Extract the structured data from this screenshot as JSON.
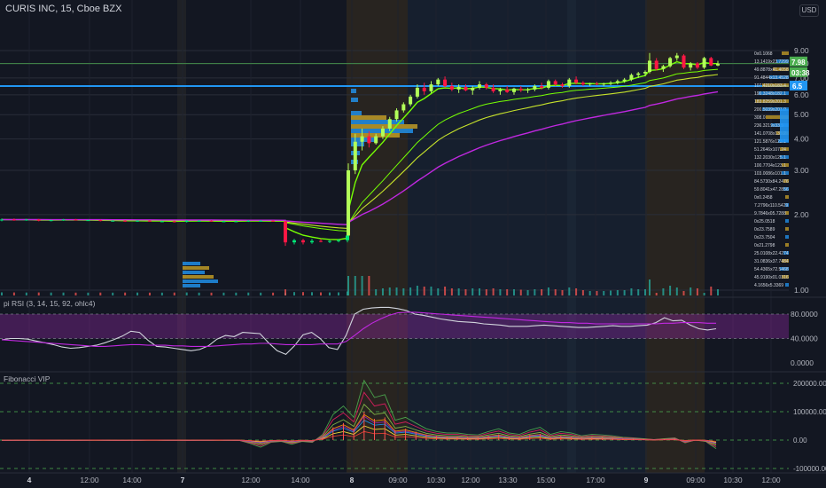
{
  "header": {
    "title": "CURIS INC, 15, Cboe BZX",
    "currency_button": "USD"
  },
  "colors": {
    "background": "#131722",
    "up": "#00e676",
    "up_light": "#b2ff59",
    "down": "#ff1744",
    "volume_profile_blue": "#2196f3",
    "volume_profile_gold": "#c9a227",
    "ema_fast": "#76ff03",
    "ema_mid": "#c6e22b",
    "ema_slow": "#c028e0",
    "hline": "#2196f3",
    "rsi_band": "#9c27b0"
  },
  "chart_data": [
    {
      "type": "candlestick",
      "title": "CURIS INC, 15, Cboe BZX",
      "ylim": [
        1.0,
        9.0
      ],
      "y_scale": "log",
      "y_ticks": [
        "9.00",
        "8.00",
        "7.00",
        "6.00",
        "5.00",
        "4.00",
        "3.00",
        "2.00",
        "1.00"
      ],
      "x_ticks": [
        "4",
        "12:00",
        "14:00",
        "7",
        "12:00",
        "14:00",
        "8",
        "09:00",
        "10:30",
        "12:00",
        "13:30",
        "15:00",
        "17:00",
        "9",
        "09:00",
        "10:30",
        "12:00"
      ],
      "last_price": "7.98",
      "countdown": "03:38",
      "horizontal_line": 6.5,
      "horizontal_line_label": "6.5",
      "candles": [
        [
          1.9,
          1.93,
          1.88,
          1.91
        ],
        [
          1.91,
          1.93,
          1.89,
          1.9
        ],
        [
          1.9,
          1.92,
          1.89,
          1.91
        ],
        [
          1.91,
          1.92,
          1.88,
          1.89
        ],
        [
          1.89,
          1.91,
          1.88,
          1.9
        ],
        [
          1.9,
          1.92,
          1.89,
          1.91
        ],
        [
          1.91,
          1.92,
          1.9,
          1.9
        ],
        [
          1.9,
          1.91,
          1.89,
          1.9
        ],
        [
          1.9,
          1.91,
          1.88,
          1.89
        ],
        [
          1.89,
          1.9,
          1.88,
          1.89
        ],
        [
          1.89,
          1.9,
          1.87,
          1.88
        ],
        [
          1.88,
          1.9,
          1.87,
          1.89
        ],
        [
          1.89,
          1.9,
          1.88,
          1.88
        ],
        [
          1.88,
          1.89,
          1.87,
          1.88
        ],
        [
          1.88,
          1.89,
          1.86,
          1.87
        ],
        [
          1.87,
          1.9,
          1.86,
          1.89
        ],
        [
          1.89,
          1.9,
          1.88,
          1.89
        ],
        [
          1.89,
          1.9,
          1.88,
          1.88
        ],
        [
          1.88,
          1.89,
          1.87,
          1.88
        ],
        [
          1.88,
          1.89,
          1.87,
          1.88
        ],
        [
          1.88,
          1.9,
          1.87,
          1.89
        ],
        [
          1.89,
          1.9,
          1.88,
          1.89
        ],
        [
          1.89,
          1.9,
          1.88,
          1.88
        ],
        [
          1.88,
          1.89,
          1.87,
          1.88
        ],
        [
          1.88,
          1.89,
          1.5,
          1.55
        ],
        [
          1.55,
          1.6,
          1.52,
          1.58
        ],
        [
          1.58,
          1.6,
          1.52,
          1.55
        ],
        [
          1.55,
          1.6,
          1.53,
          1.57
        ],
        [
          1.57,
          1.6,
          1.55,
          1.56
        ],
        [
          1.56,
          1.58,
          1.54,
          1.57
        ],
        [
          1.57,
          1.6,
          1.55,
          1.58
        ],
        [
          1.58,
          1.7,
          1.55,
          1.65
        ],
        [
          1.65,
          3.2,
          1.65,
          3.0
        ],
        [
          3.0,
          4.2,
          2.9,
          3.9
        ],
        [
          3.9,
          4.4,
          3.6,
          4.1
        ],
        [
          4.1,
          4.3,
          3.7,
          3.85
        ],
        [
          3.85,
          4.2,
          3.8,
          4.1
        ],
        [
          4.1,
          4.5,
          4.0,
          4.4
        ],
        [
          4.4,
          4.9,
          4.3,
          4.8
        ],
        [
          4.8,
          5.3,
          4.7,
          5.2
        ],
        [
          5.2,
          5.6,
          5.1,
          5.5
        ],
        [
          5.5,
          6.0,
          5.4,
          5.9
        ],
        [
          5.9,
          6.6,
          5.8,
          6.4
        ],
        [
          6.4,
          6.7,
          6.0,
          6.2
        ],
        [
          6.2,
          6.8,
          6.1,
          6.6
        ],
        [
          6.6,
          7.0,
          6.5,
          6.9
        ],
        [
          6.9,
          7.1,
          6.4,
          6.5
        ],
        [
          6.5,
          6.7,
          6.2,
          6.3
        ],
        [
          6.3,
          6.6,
          6.1,
          6.45
        ],
        [
          6.45,
          6.6,
          6.2,
          6.25
        ],
        [
          6.25,
          6.5,
          6.0,
          6.4
        ],
        [
          6.4,
          6.8,
          6.3,
          6.6
        ],
        [
          6.6,
          6.7,
          6.3,
          6.4
        ],
        [
          6.4,
          6.6,
          6.1,
          6.2
        ],
        [
          6.2,
          6.4,
          6.0,
          6.3
        ],
        [
          6.3,
          6.5,
          6.1,
          6.15
        ],
        [
          6.15,
          6.4,
          6.0,
          6.35
        ],
        [
          6.35,
          6.5,
          6.15,
          6.25
        ],
        [
          6.25,
          6.4,
          6.1,
          6.3
        ],
        [
          6.3,
          6.6,
          6.2,
          6.5
        ],
        [
          6.5,
          6.7,
          6.3,
          6.4
        ],
        [
          6.4,
          6.9,
          6.3,
          6.8
        ],
        [
          6.8,
          6.9,
          6.5,
          6.6
        ],
        [
          6.6,
          6.7,
          6.4,
          6.5
        ],
        [
          6.5,
          7.0,
          6.4,
          6.9
        ],
        [
          6.9,
          7.1,
          6.6,
          6.7
        ],
        [
          6.7,
          6.8,
          6.5,
          6.6
        ],
        [
          6.6,
          6.7,
          6.5,
          6.65
        ],
        [
          6.65,
          6.75,
          6.55,
          6.6
        ],
        [
          6.6,
          6.7,
          6.5,
          6.65
        ],
        [
          6.65,
          6.8,
          6.55,
          6.7
        ],
        [
          6.7,
          6.9,
          6.6,
          6.8
        ],
        [
          6.8,
          7.0,
          6.7,
          6.9
        ],
        [
          6.9,
          7.3,
          6.8,
          7.2
        ],
        [
          7.2,
          7.4,
          7.0,
          7.3
        ],
        [
          7.3,
          7.5,
          7.1,
          7.4
        ],
        [
          7.4,
          8.8,
          7.3,
          8.2
        ],
        [
          8.2,
          8.4,
          7.5,
          7.6
        ],
        [
          7.6,
          7.9,
          7.4,
          7.8
        ],
        [
          7.8,
          8.5,
          7.7,
          8.4
        ],
        [
          8.4,
          8.8,
          8.2,
          8.6
        ],
        [
          8.6,
          8.7,
          7.6,
          7.7
        ],
        [
          7.7,
          8.1,
          7.5,
          8.0
        ],
        [
          8.0,
          8.1,
          7.6,
          7.7
        ],
        [
          7.7,
          8.5,
          7.6,
          8.4
        ],
        [
          8.4,
          8.5,
          7.8,
          7.85
        ],
        [
          7.85,
          8.2,
          7.8,
          7.98
        ]
      ],
      "moving_averages": {
        "ema_fast_end": 7.5,
        "ema_mid_end": 6.4,
        "ema_slow_end": 5.45
      },
      "volume_profile_levels": [
        "0x0.1068",
        "13.1419x23.7299",
        "49.8878x41.4058",
        "91.4844x13.4528",
        "107.4210x183.4",
        "190.3248x182.1",
        "183.8259x201.3",
        "200.5039x201.0",
        "308.0",
        "236.3219x33.5",
        "141.0708x135.2",
        "121.5876x123.1",
        "51.2646x107.24",
        "132.2030x125.1",
        "100.7704x123.1",
        "103.0086x101.1",
        "84.5730x84.2476",
        "59.8041x47.2856",
        "0x0.2458",
        "7.2796x110.5429",
        "9.7846x05.7288",
        "0x25.0518",
        "0x23.7589",
        "0x23.7504",
        "0x21.2798",
        "25.0108x22.4274",
        "31.0836x37.7484",
        "54.4365x72.5468",
        "45.9190x01.0316",
        "4.1656x5.3369"
      ]
    },
    {
      "type": "line",
      "title": "pi RSI (3, 14, 15, 92, ohlc4)",
      "ylim": [
        0,
        100
      ],
      "y_ticks": [
        "80.0000",
        "40.0000",
        "0.0000"
      ],
      "band": [
        40,
        80
      ],
      "series": [
        {
          "values": [
            38,
            40,
            40,
            39,
            36,
            33,
            30,
            26,
            24,
            25,
            27,
            29,
            33,
            38,
            44,
            52,
            50,
            37,
            27,
            26,
            24,
            22,
            20,
            22,
            28,
            39,
            45,
            43,
            50,
            49,
            48,
            33,
            20,
            14,
            28,
            46,
            50,
            40,
            25,
            22,
            45,
            80,
            88,
            90,
            91,
            91,
            89,
            86,
            80,
            78,
            75,
            72,
            70,
            68,
            67,
            66,
            64,
            63,
            62,
            60,
            60,
            60,
            61,
            62,
            61,
            60,
            59,
            58,
            58,
            59,
            60,
            61,
            60,
            60,
            61,
            62,
            66,
            74,
            69,
            70,
            62,
            56,
            54,
            56
          ]
        },
        {
          "values": [
            38,
            37,
            36,
            35,
            34,
            33,
            32,
            31,
            30,
            29,
            28,
            27,
            27,
            28,
            29,
            30,
            30,
            29,
            29,
            29,
            28,
            28,
            27,
            27,
            27,
            28,
            29,
            30,
            31,
            31,
            32,
            32,
            31,
            30,
            30,
            30,
            30,
            31,
            31,
            31,
            35,
            45,
            56,
            65,
            72,
            78,
            82,
            83,
            83,
            82,
            81,
            80,
            79,
            78,
            77,
            76,
            75,
            74,
            73,
            72,
            71,
            70,
            69,
            68,
            67,
            66,
            66,
            65,
            65,
            64,
            64,
            64,
            64,
            64,
            64,
            64,
            64,
            65,
            65,
            66,
            66,
            66,
            65,
            65
          ]
        }
      ]
    },
    {
      "type": "line",
      "title": "Fibonacci VIP",
      "ylim": [
        -100000,
        200000
      ],
      "y_ticks": [
        "200000.00",
        "100000.00",
        "0.00",
        "-100000.00"
      ],
      "series": [
        {
          "values": [
            -2000,
            -2000,
            -1500,
            -1500,
            -1000,
            -1500,
            -2000,
            -2000,
            -1500,
            -1000,
            -1500,
            -2000,
            -2000,
            -1500,
            -1000,
            -1000,
            -1500,
            -1500,
            -2000,
            -1500,
            -1500,
            -1000,
            -1500,
            -2000,
            -12000,
            -25000,
            -8000,
            -5000,
            -15000,
            -5000,
            -8000,
            20000,
            90000,
            120000,
            80000,
            210000,
            150000,
            160000,
            70000,
            80000,
            60000,
            40000,
            30000,
            25000,
            25000,
            20000,
            18000,
            30000,
            40000,
            25000,
            20000,
            35000,
            45000,
            20000,
            30000,
            25000,
            15000,
            20000,
            18000,
            15000,
            10000,
            8000,
            5000,
            2000,
            5000,
            8000,
            -10000,
            0,
            -5000,
            -30000
          ]
        },
        {
          "values": [
            -1000,
            -1000,
            -800,
            -800,
            -500,
            -800,
            -1000,
            -1000,
            -800,
            -500,
            -800,
            -1000,
            -1000,
            -800,
            -500,
            -500,
            -800,
            -800,
            -1000,
            -800,
            -800,
            -500,
            -800,
            -1000,
            -6000,
            -12000,
            -4000,
            -2000,
            -8000,
            -2000,
            -4000,
            10000,
            45000,
            60000,
            40000,
            100000,
            75000,
            80000,
            35000,
            40000,
            30000,
            20000,
            15000,
            12000,
            12000,
            10000,
            9000,
            15000,
            20000,
            12000,
            10000,
            18000,
            22000,
            10000,
            15000,
            12000,
            8000,
            10000,
            9000,
            8000,
            5000,
            4000,
            3000,
            1000,
            3000,
            4000,
            -5000,
            0,
            -2500,
            -15000
          ]
        }
      ]
    }
  ]
}
